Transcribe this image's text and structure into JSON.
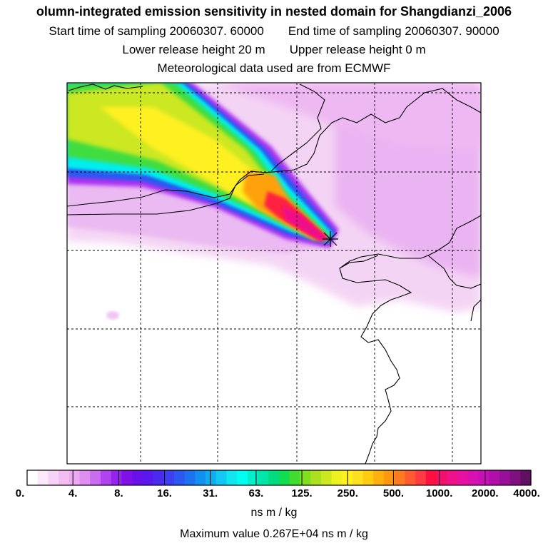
{
  "header": {
    "title": "olumn-integrated emission sensitivity in nested domain for Shangdianzi_2006",
    "start_label": "Start time of sampling 20060307. 60000",
    "end_label": "End time of sampling 20060307. 90000",
    "lower_label": "Lower release height   20 m",
    "upper_label": "Upper release height    0 m",
    "met_label": "Meteorological data used are from ECMWF"
  },
  "colorbar": {
    "unit": "ns m / kg",
    "tick_labels": [
      "0.",
      "4.",
      "8.",
      "16.",
      "31.",
      "63.",
      "125.",
      "250.",
      "500.",
      "1000.",
      "2000.",
      "4000."
    ],
    "colors": [
      "#ffffff",
      "#fbe8fb",
      "#f7d2f7",
      "#f3bdf3",
      "#eeaaf0",
      "#de8ef0",
      "#c86cf0",
      "#b042f0",
      "#9822f0",
      "#8010e8",
      "#6a10e8",
      "#5a18f0",
      "#4b2af0",
      "#3d40f0",
      "#2c58f0",
      "#1c72f0",
      "#1090f0",
      "#10acf0",
      "#10c8f0",
      "#10e6f0",
      "#00ffee",
      "#00f0cc",
      "#00e6aa",
      "#00dd80",
      "#10dd50",
      "#40dd30",
      "#80e020",
      "#aae020",
      "#cce820",
      "#eef020",
      "#fff020",
      "#ffe020",
      "#ffcc10",
      "#ffb010",
      "#ff9810",
      "#ff7a20",
      "#ff5a30",
      "#ff3a40",
      "#ff1040",
      "#f0106a",
      "#f01088",
      "#e810a0",
      "#d810b0",
      "#c810b8",
      "#b010a8",
      "#981098",
      "#801080",
      "#601060"
    ]
  },
  "footer": {
    "max_value": "Maximum value  0.267E+04 ns m / kg"
  }
}
